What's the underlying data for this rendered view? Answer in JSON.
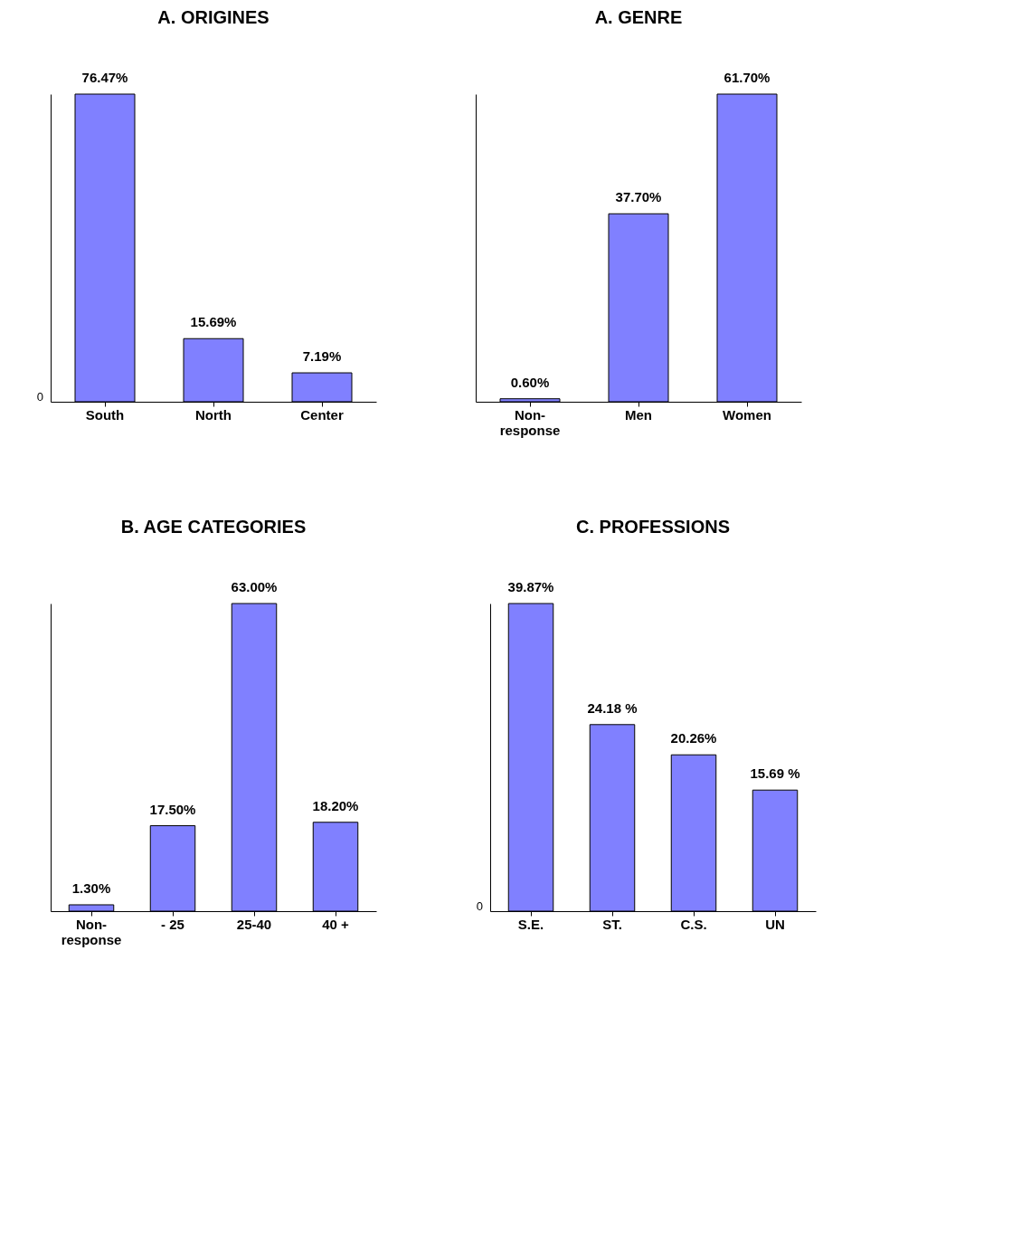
{
  "chart_data": [
    {
      "type": "bar",
      "title": "A. ORIGINES",
      "categories": [
        "South",
        "North",
        "Center"
      ],
      "values": [
        76.47,
        15.69,
        7.19
      ],
      "color": "#8080ff",
      "value_labels": [
        "76.47%",
        "15.69%",
        "7.19%"
      ],
      "annotations": [
        "0"
      ]
    },
    {
      "type": "bar",
      "title": "A. GENRE",
      "categories": [
        "Non-response",
        "Men",
        "Women"
      ],
      "values": [
        0.6,
        37.7,
        61.7
      ],
      "color": "#8080ff",
      "value_labels": [
        "0.60%",
        "37.70%",
        "61.70%"
      ]
    },
    {
      "type": "bar",
      "title": "B. AGE CATEGORIES",
      "categories": [
        "Non-response",
        "- 25",
        "25-40",
        "40  +"
      ],
      "values": [
        1.3,
        17.5,
        63.0,
        18.2
      ],
      "color": "#8080ff",
      "value_labels": [
        "1.30%",
        "17.50%",
        "63.00%",
        "18.20%"
      ]
    },
    {
      "type": "bar",
      "title": "C.  PROFESSIONS",
      "categories": [
        "S.E.",
        "ST.",
        "C.S.",
        "UN"
      ],
      "values": [
        39.87,
        24.18,
        20.26,
        15.69
      ],
      "color": "#8080ff",
      "value_labels": [
        "39.87%",
        "24.18 %",
        "20.26%",
        "15.69 %"
      ],
      "annotations": [
        "0"
      ]
    }
  ]
}
